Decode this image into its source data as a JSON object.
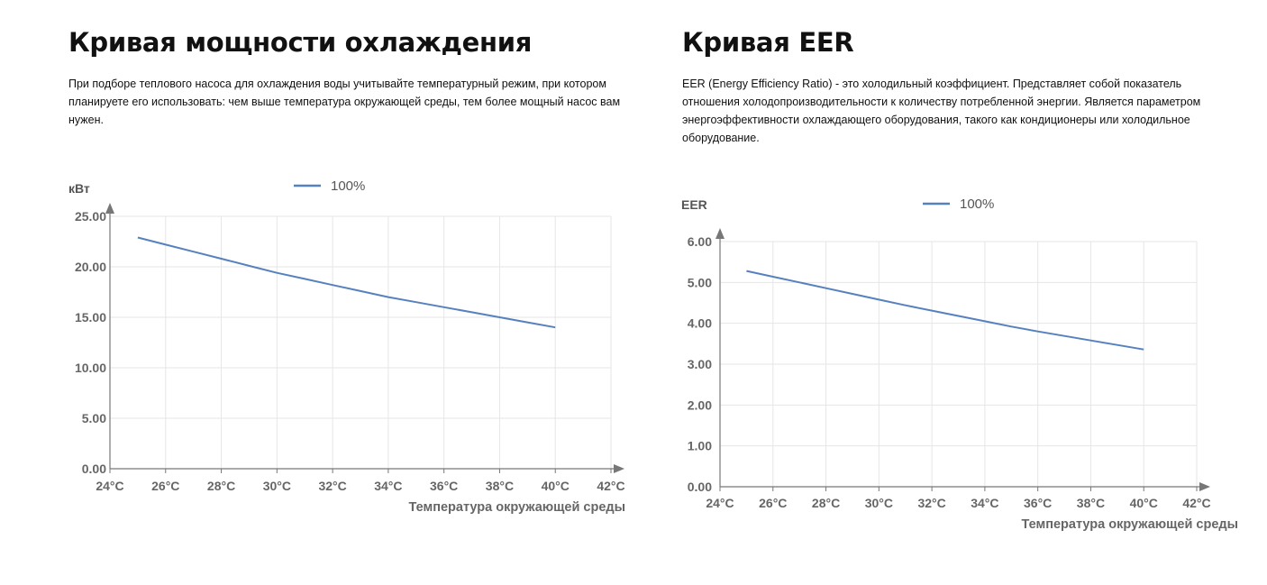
{
  "left": {
    "title": "Кривая мощности охлаждения",
    "description": "При подборе теплового насоса для охлаждения воды учитывайте температурный режим, при котором планируете его использовать: чем выше температура окружающей среды, тем более мощный насос вам нужен."
  },
  "right": {
    "title": "Кривая EER",
    "description": "EER (Energy Efficiency Ratio) - это холодильный коэффициент. Представляет собой показатель отношения холодопроизводительности к количеству потребленной энергии. Является параметром энергоэффективности охлаждающего оборудования, такого как кондиционеры или холодильное оборудование."
  },
  "chart_data": [
    {
      "type": "line",
      "ylabel": "кВт",
      "xlabel": "Температура окружающей среды",
      "x_ticks": [
        "24°C",
        "26°C",
        "28°C",
        "30°C",
        "32°C",
        "34°C",
        "36°C",
        "38°C",
        "40°C",
        "42°C"
      ],
      "y_ticks": [
        "0.00",
        "5.00",
        "10.00",
        "15.00",
        "20.00",
        "25.00"
      ],
      "xlim": [
        24,
        42
      ],
      "ylim": [
        0,
        25
      ],
      "grid": true,
      "legend_position": "top",
      "color": "#5681bf",
      "series": [
        {
          "name": "100%",
          "x": [
            25,
            26,
            27,
            28,
            29,
            30,
            31,
            32,
            33,
            34,
            35,
            36,
            37,
            38,
            39,
            40
          ],
          "y": [
            22.9,
            22.2,
            21.5,
            20.8,
            20.1,
            19.4,
            18.8,
            18.2,
            17.6,
            17.0,
            16.5,
            16.0,
            15.5,
            15.0,
            14.5,
            14.0
          ]
        }
      ]
    },
    {
      "type": "line",
      "ylabel": "EER",
      "xlabel": "Температура окружающей среды",
      "x_ticks": [
        "24°C",
        "26°C",
        "28°C",
        "30°C",
        "32°C",
        "34°C",
        "36°C",
        "38°C",
        "40°C",
        "42°C"
      ],
      "y_ticks": [
        "0.00",
        "1.00",
        "2.00",
        "3.00",
        "4.00",
        "5.00",
        "6.00"
      ],
      "xlim": [
        24,
        42
      ],
      "ylim": [
        0,
        6
      ],
      "grid": true,
      "legend_position": "top",
      "color": "#5681bf",
      "series": [
        {
          "name": "100%",
          "x": [
            25,
            26,
            27,
            28,
            29,
            30,
            31,
            32,
            33,
            34,
            35,
            36,
            37,
            38,
            39,
            40
          ],
          "y": [
            5.28,
            5.14,
            5.0,
            4.86,
            4.72,
            4.58,
            4.44,
            4.31,
            4.18,
            4.05,
            3.92,
            3.8,
            3.69,
            3.58,
            3.47,
            3.36
          ]
        }
      ]
    }
  ]
}
